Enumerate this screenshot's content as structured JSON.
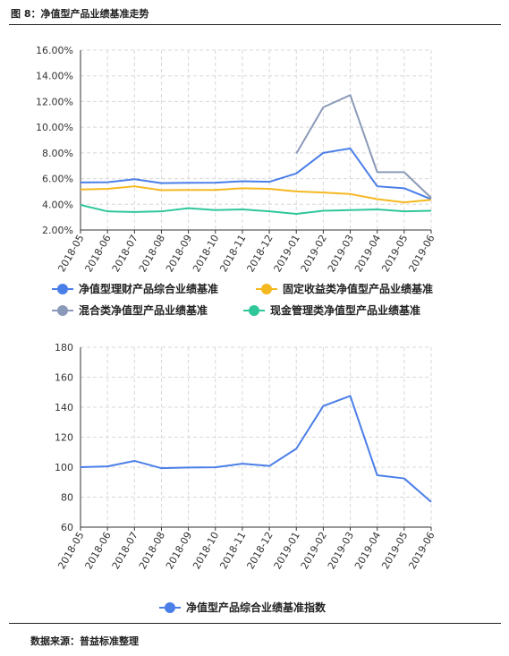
{
  "figure_title": "图 8：净值型产品业绩基准走势",
  "source": "数据来源：普益标准整理",
  "chart_data": [
    {
      "type": "line",
      "categories": [
        "2018-05",
        "2018-06",
        "2018-07",
        "2018-08",
        "2018-09",
        "2018-10",
        "2018-11",
        "2018-12",
        "2019-01",
        "2019-02",
        "2019-03",
        "2019-04",
        "2019-05",
        "2019-06"
      ],
      "ylim": [
        2,
        16
      ],
      "yticks": [
        "2.00%",
        "4.00%",
        "6.00%",
        "8.00%",
        "10.00%",
        "12.00%",
        "14.00%",
        "16.00%"
      ],
      "grid": true,
      "legend_position": "bottom",
      "series": [
        {
          "name": "净值型理财产品综合业绩基准",
          "color": "#4a7ee8",
          "values": [
            5.7,
            5.72,
            5.95,
            5.65,
            5.67,
            5.68,
            5.8,
            5.75,
            6.4,
            8.0,
            8.35,
            5.4,
            5.25,
            4.4
          ]
        },
        {
          "name": "固定收益类净值型产品业绩基准",
          "color": "#f5b820",
          "values": [
            5.15,
            5.2,
            5.4,
            5.1,
            5.12,
            5.12,
            5.25,
            5.2,
            5.0,
            4.92,
            4.8,
            4.4,
            4.15,
            4.35
          ]
        },
        {
          "name": "混合类净值型产品业绩基准",
          "color": "#8b9ab8",
          "values": [
            null,
            null,
            null,
            null,
            null,
            null,
            null,
            null,
            7.95,
            11.55,
            12.5,
            6.5,
            6.5,
            4.5
          ]
        },
        {
          "name": "现金管理类净值型产品业绩基准",
          "color": "#2fc79a",
          "values": [
            3.95,
            3.45,
            3.4,
            3.45,
            3.7,
            3.55,
            3.6,
            3.45,
            3.25,
            3.5,
            3.55,
            3.6,
            3.45,
            3.5
          ]
        }
      ]
    },
    {
      "type": "line",
      "categories": [
        "2018-05",
        "2018-06",
        "2018-07",
        "2018-08",
        "2018-09",
        "2018-10",
        "2018-11",
        "2018-12",
        "2019-01",
        "2019-02",
        "2019-03",
        "2019-04",
        "2019-05",
        "2019-06"
      ],
      "ylim": [
        60,
        180
      ],
      "yticks": [
        "60",
        "80",
        "100",
        "120",
        "140",
        "160",
        "180"
      ],
      "grid": true,
      "legend_position": "bottom",
      "series": [
        {
          "name": "净值型产品综合业绩基准指数",
          "color": "#4a7ee8",
          "values": [
            100,
            100.5,
            104.2,
            99.3,
            99.8,
            99.9,
            102.3,
            100.8,
            112.3,
            140.8,
            147.5,
            94.6,
            92.5,
            76.8
          ]
        }
      ]
    }
  ]
}
